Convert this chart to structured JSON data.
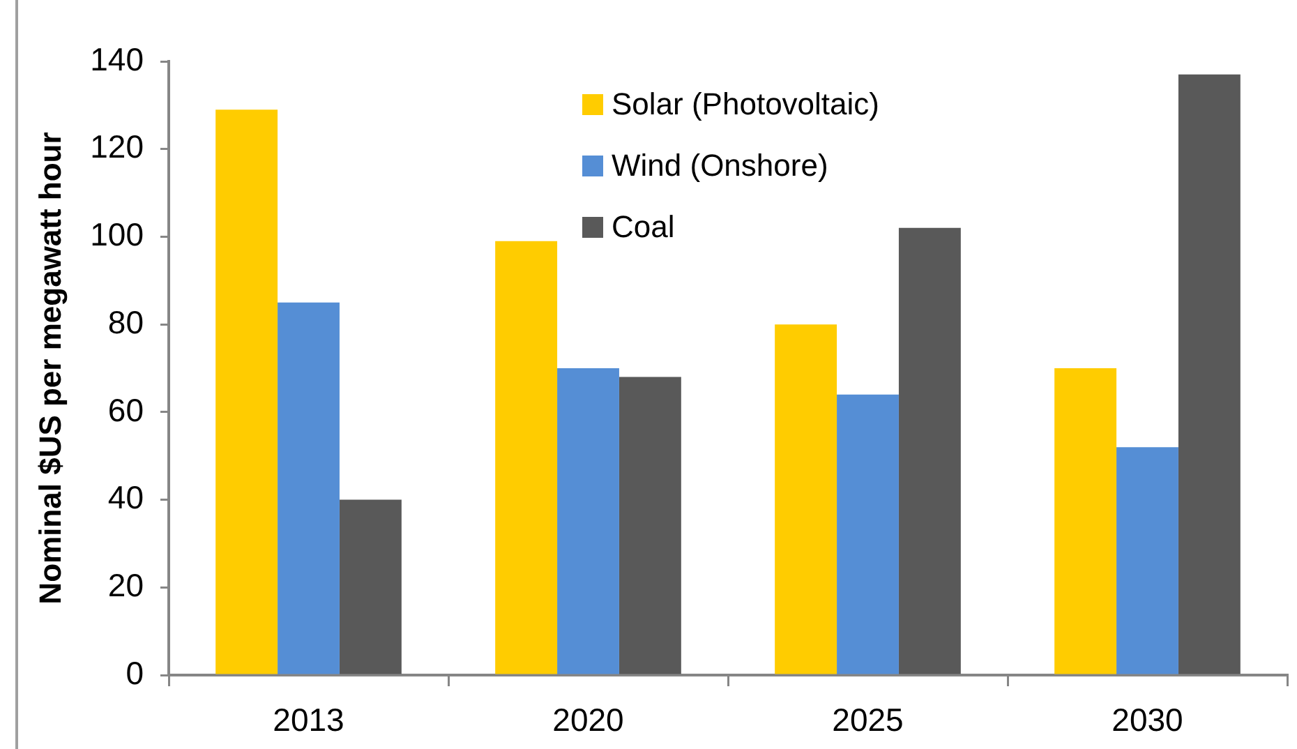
{
  "chart_data": {
    "type": "bar",
    "ylabel": "Nominal $US per megawatt hour",
    "categories": [
      "2013",
      "2020",
      "2025",
      "2030"
    ],
    "series": [
      {
        "name": "Solar (Photovoltaic)",
        "color": "#ffcc00",
        "values": [
          129,
          99,
          80,
          70
        ]
      },
      {
        "name": "Wind (Onshore)",
        "color": "#558ed5",
        "values": [
          85,
          70,
          64,
          52
        ]
      },
      {
        "name": "Coal",
        "color": "#595959",
        "values": [
          40,
          68,
          102,
          137
        ]
      }
    ],
    "ylim": [
      0,
      140
    ],
    "yticks": [
      0,
      20,
      40,
      60,
      80,
      100,
      120,
      140
    ],
    "legend": "top"
  }
}
